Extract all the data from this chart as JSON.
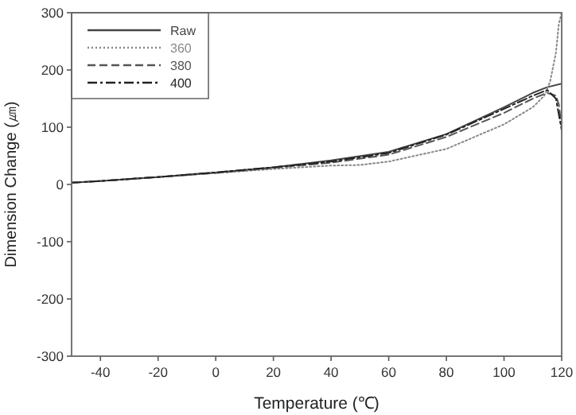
{
  "chart_data": {
    "type": "line",
    "xlabel": "Temperature (℃)",
    "ylabel": "Dimension Change (㎛)",
    "xlim": [
      -50,
      120
    ],
    "xticks": [
      -40,
      -20,
      0,
      20,
      40,
      60,
      80,
      100,
      120
    ],
    "ylim": [
      -300,
      300
    ],
    "yticks": [
      -300,
      -200,
      -100,
      0,
      100,
      200,
      300
    ],
    "legend": "top left",
    "series": [
      {
        "name": "Raw",
        "color": "#444444",
        "line_style": "solid",
        "x": [
          -50,
          -40,
          -20,
          0,
          20,
          40,
          60,
          80,
          100,
          110,
          115,
          120
        ],
        "values": [
          3,
          6,
          13,
          21,
          30,
          42,
          57,
          88,
          135,
          160,
          170,
          176
        ]
      },
      {
        "name": "360",
        "color": "#888888",
        "line_style": "dotted",
        "x": [
          -50,
          -40,
          -20,
          0,
          20,
          40,
          50,
          60,
          80,
          100,
          110,
          114,
          116,
          118,
          119,
          120
        ],
        "values": [
          3,
          6,
          13,
          20,
          27,
          33,
          34,
          40,
          62,
          105,
          135,
          155,
          180,
          230,
          280,
          300
        ]
      },
      {
        "name": "380",
        "color": "#555555",
        "line_style": "dashed",
        "x": [
          -50,
          -40,
          -20,
          0,
          20,
          40,
          60,
          80,
          100,
          110,
          115,
          118,
          119,
          120
        ],
        "values": [
          3,
          6,
          13,
          20,
          29,
          38,
          52,
          83,
          125,
          150,
          160,
          155,
          140,
          100
        ]
      },
      {
        "name": "400",
        "color": "#222222",
        "line_style": "dashdot",
        "x": [
          -50,
          -40,
          -20,
          0,
          20,
          40,
          60,
          80,
          100,
          110,
          115,
          118,
          120
        ],
        "values": [
          3,
          6,
          13,
          21,
          30,
          40,
          55,
          87,
          132,
          155,
          165,
          150,
          95
        ]
      }
    ]
  }
}
